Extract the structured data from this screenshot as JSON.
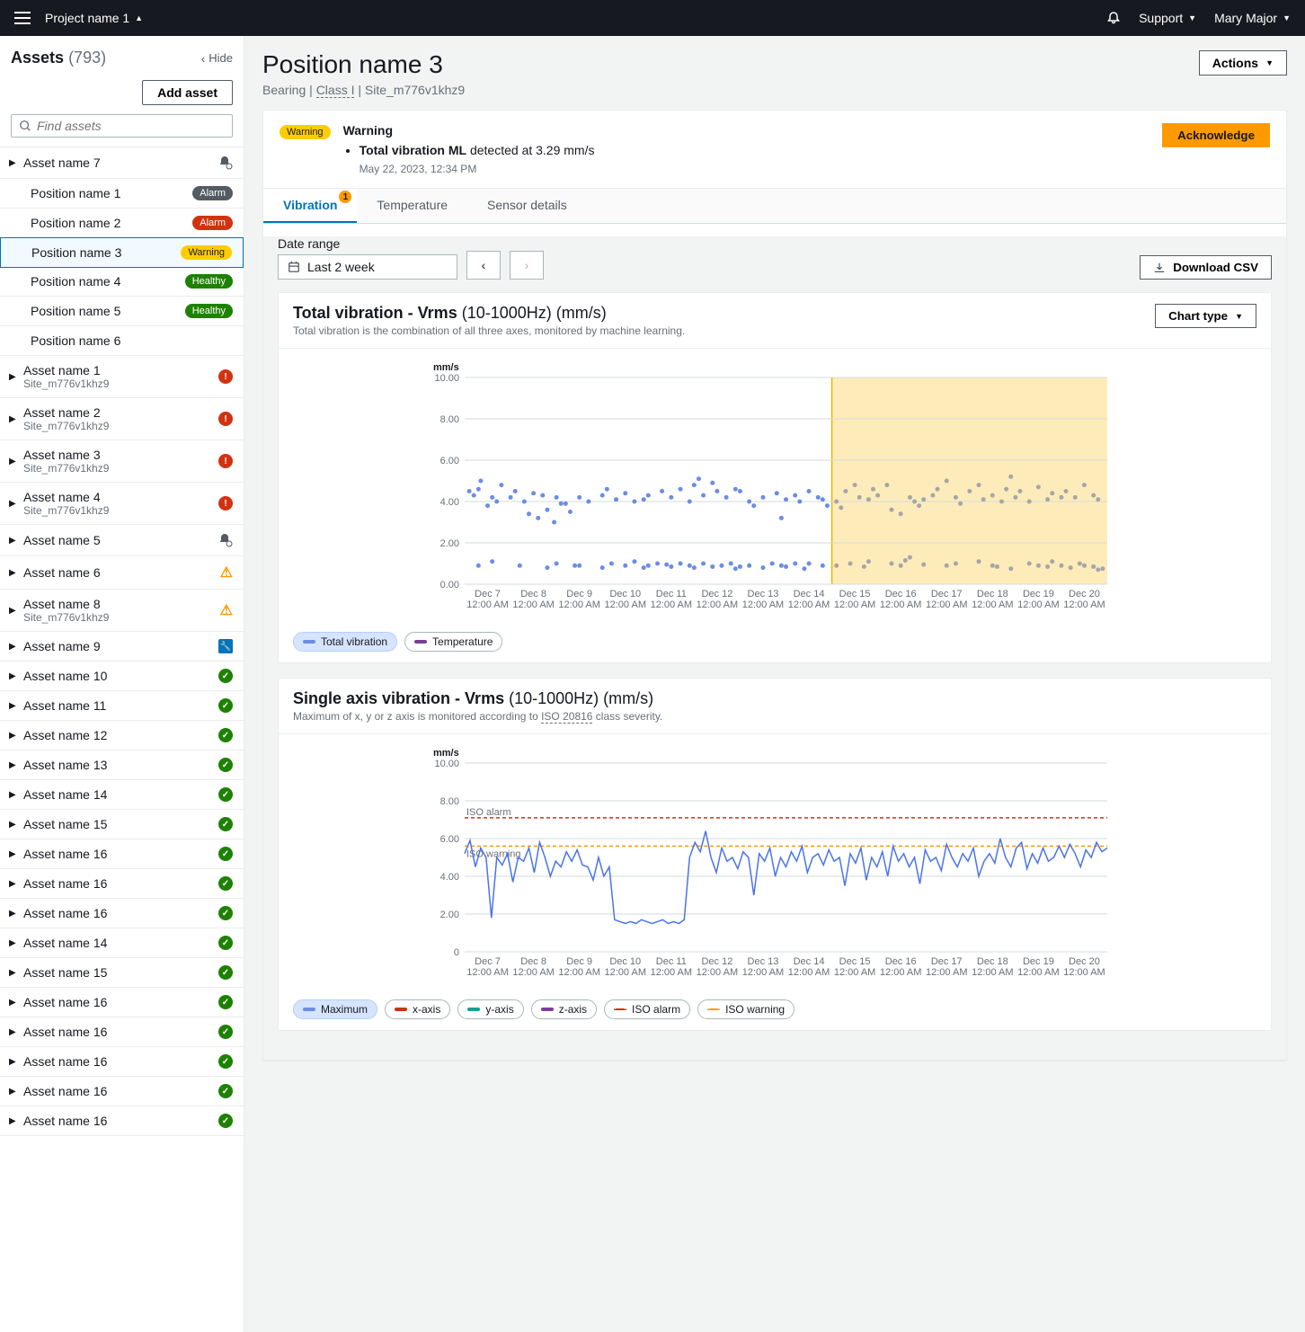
{
  "topnav": {
    "project": "Project name 1",
    "support": "Support",
    "user": "Mary Major"
  },
  "sidebar": {
    "title": "Assets",
    "count": "(793)",
    "hide": "Hide",
    "add_asset": "Add asset",
    "search_placeholder": "Find assets",
    "tree": [
      {
        "label": "Asset name 7",
        "status": "bell",
        "caret": true
      },
      {
        "label": "Position name 1",
        "badge": "alarm-g",
        "badge_text": "Alarm",
        "child": true
      },
      {
        "label": "Position name 2",
        "badge": "alarm",
        "badge_text": "Alarm",
        "child": true
      },
      {
        "label": "Position name 3",
        "badge": "warning",
        "badge_text": "Warning",
        "child": true,
        "selected": true
      },
      {
        "label": "Position name 4",
        "badge": "healthy",
        "badge_text": "Healthy",
        "child": true
      },
      {
        "label": "Position name 5",
        "badge": "healthy",
        "badge_text": "Healthy",
        "child": true
      },
      {
        "label": "Position name 6",
        "child": true
      },
      {
        "label": "Asset name 1",
        "sub": "Site_m776v1khz9",
        "status": "err",
        "caret": true
      },
      {
        "label": "Asset name 2",
        "sub": "Site_m776v1khz9",
        "status": "err",
        "caret": true
      },
      {
        "label": "Asset name 3",
        "sub": "Site_m776v1khz9",
        "status": "err",
        "caret": true
      },
      {
        "label": "Asset name 4",
        "sub": "Site_m776v1khz9",
        "status": "err",
        "caret": true
      },
      {
        "label": "Asset name 5",
        "status": "bell",
        "caret": true
      },
      {
        "label": "Asset name 6",
        "status": "warn",
        "caret": true
      },
      {
        "label": "Asset name 8",
        "sub": "Site_m776v1khz9",
        "status": "warn",
        "caret": true
      },
      {
        "label": "Asset name 9",
        "status": "wrench",
        "caret": true
      },
      {
        "label": "Asset name 10",
        "status": "ok",
        "caret": true
      },
      {
        "label": "Asset name 11",
        "status": "ok",
        "caret": true
      },
      {
        "label": "Asset name 12",
        "status": "ok",
        "caret": true
      },
      {
        "label": "Asset name 13",
        "status": "ok",
        "caret": true
      },
      {
        "label": "Asset name 14",
        "status": "ok",
        "caret": true
      },
      {
        "label": "Asset name 15",
        "status": "ok",
        "caret": true
      },
      {
        "label": "Asset name 16",
        "status": "ok",
        "caret": true
      },
      {
        "label": "Asset name 16",
        "status": "ok",
        "caret": true
      },
      {
        "label": "Asset name 16",
        "status": "ok",
        "caret": true
      },
      {
        "label": "Asset name 14",
        "status": "ok",
        "caret": true
      },
      {
        "label": "Asset name 15",
        "status": "ok",
        "caret": true
      },
      {
        "label": "Asset name 16",
        "status": "ok",
        "caret": true
      },
      {
        "label": "Asset name 16",
        "status": "ok",
        "caret": true
      },
      {
        "label": "Asset name 16",
        "status": "ok",
        "caret": true
      },
      {
        "label": "Asset name 16",
        "status": "ok",
        "caret": true
      },
      {
        "label": "Asset name 16",
        "status": "ok",
        "caret": true
      }
    ]
  },
  "main": {
    "title": "Position name 3",
    "crumb1": "Bearing",
    "crumb2": "Class I",
    "crumb3": "Site_m776v1khz9",
    "actions": "Actions",
    "alert": {
      "badge": "Warning",
      "title": "Warning",
      "bullet_b": "Total vibration ML",
      "bullet_rest": " detected at 3.29 mm/s",
      "ts": "May 22, 2023, 12:34 PM",
      "ack": "Acknowledge"
    },
    "tabs": [
      {
        "label": "Vibration",
        "active": true,
        "badge": "1"
      },
      {
        "label": "Temperature"
      },
      {
        "label": "Sensor details"
      }
    ],
    "date_label": "Date range",
    "date_value": "Last 2 week",
    "download": "Download CSV",
    "chart1": {
      "title_b": "Total vibration - Vrms",
      "title_l": " (10-1000Hz) (mm/s)",
      "sub": "Total vibration is the combination of all three axes, monitored by machine learning.",
      "chart_type": "Chart type",
      "ylabel": "mm/s",
      "ylim": [
        0,
        10
      ],
      "ytick_step": 2,
      "x_labels": [
        "Dec 7",
        "Dec 8",
        "Dec 9",
        "Dec 10",
        "Dec 11",
        "Dec 12",
        "Dec 13",
        "Dec 14",
        "Dec 15",
        "Dec 16",
        "Dec 17",
        "Dec 18",
        "Dec 19",
        "Dec 20"
      ],
      "x_sub": "12:00 AM",
      "highlight_start": 8,
      "highlight_color": "#fdecba",
      "colors": {
        "active": "#6b8de3",
        "inactive": "#a6a6a6"
      },
      "legends": [
        {
          "label": "Total vibration",
          "color": "#6b8de3",
          "active": true
        },
        {
          "label": "Temperature",
          "color": "#7d3c98"
        }
      ],
      "data": [
        [
          0.1,
          4.5
        ],
        [
          0.2,
          4.3
        ],
        [
          0.3,
          4.6
        ],
        [
          0.35,
          5.0
        ],
        [
          0.5,
          3.8
        ],
        [
          0.6,
          4.2
        ],
        [
          0.7,
          4.0
        ],
        [
          0.8,
          4.8
        ],
        [
          1.0,
          4.2
        ],
        [
          1.1,
          4.5
        ],
        [
          1.3,
          4.0
        ],
        [
          1.4,
          3.4
        ],
        [
          1.5,
          4.4
        ],
        [
          1.6,
          3.2
        ],
        [
          1.7,
          4.3
        ],
        [
          1.8,
          3.6
        ],
        [
          1.95,
          3.0
        ],
        [
          2.0,
          4.2
        ],
        [
          2.1,
          3.9
        ],
        [
          2.2,
          3.9
        ],
        [
          2.3,
          3.5
        ],
        [
          2.5,
          4.2
        ],
        [
          2.7,
          4.0
        ],
        [
          3.0,
          4.3
        ],
        [
          3.1,
          4.6
        ],
        [
          3.3,
          4.1
        ],
        [
          3.5,
          4.4
        ],
        [
          3.7,
          4.0
        ],
        [
          3.9,
          4.1
        ],
        [
          4.0,
          4.3
        ],
        [
          4.3,
          4.5
        ],
        [
          4.5,
          4.2
        ],
        [
          4.7,
          4.6
        ],
        [
          4.9,
          4.0
        ],
        [
          5.0,
          4.8
        ],
        [
          5.1,
          5.1
        ],
        [
          5.2,
          4.3
        ],
        [
          5.4,
          4.9
        ],
        [
          5.5,
          4.5
        ],
        [
          5.7,
          4.2
        ],
        [
          5.9,
          4.6
        ],
        [
          6.0,
          4.5
        ],
        [
          6.2,
          4.0
        ],
        [
          6.3,
          3.8
        ],
        [
          6.5,
          4.2
        ],
        [
          6.8,
          4.4
        ],
        [
          6.9,
          3.2
        ],
        [
          7.0,
          4.1
        ],
        [
          7.2,
          4.3
        ],
        [
          7.3,
          4.0
        ],
        [
          7.5,
          4.5
        ],
        [
          7.7,
          4.2
        ],
        [
          7.8,
          4.1
        ],
        [
          7.9,
          3.8
        ],
        [
          8.1,
          4.0
        ],
        [
          8.2,
          3.7
        ],
        [
          8.3,
          4.5
        ],
        [
          8.5,
          4.8
        ],
        [
          8.6,
          4.2
        ],
        [
          8.8,
          4.1
        ],
        [
          8.9,
          4.6
        ],
        [
          9.0,
          4.3
        ],
        [
          9.2,
          4.8
        ],
        [
          9.3,
          3.6
        ],
        [
          9.5,
          3.4
        ],
        [
          9.7,
          4.2
        ],
        [
          9.8,
          4.0
        ],
        [
          9.9,
          3.8
        ],
        [
          10.0,
          4.1
        ],
        [
          10.2,
          4.3
        ],
        [
          10.3,
          4.6
        ],
        [
          10.5,
          5.0
        ],
        [
          10.7,
          4.2
        ],
        [
          10.8,
          3.9
        ],
        [
          11.0,
          4.5
        ],
        [
          11.2,
          4.8
        ],
        [
          11.3,
          4.1
        ],
        [
          11.5,
          4.3
        ],
        [
          11.7,
          4.0
        ],
        [
          11.8,
          4.6
        ],
        [
          11.9,
          5.2
        ],
        [
          12.0,
          4.2
        ],
        [
          12.1,
          4.5
        ],
        [
          12.3,
          4.0
        ],
        [
          12.5,
          4.7
        ],
        [
          12.7,
          4.1
        ],
        [
          12.8,
          4.4
        ],
        [
          13.0,
          4.2
        ],
        [
          13.1,
          4.5
        ],
        [
          13.3,
          4.2
        ],
        [
          13.5,
          4.8
        ],
        [
          13.7,
          4.3
        ],
        [
          13.8,
          4.1
        ],
        [
          0.3,
          0.9
        ],
        [
          0.6,
          1.1
        ],
        [
          1.2,
          0.9
        ],
        [
          1.8,
          0.8
        ],
        [
          2.0,
          1.0
        ],
        [
          2.4,
          0.9
        ],
        [
          2.5,
          0.9
        ],
        [
          3.0,
          0.8
        ],
        [
          3.2,
          1.0
        ],
        [
          3.5,
          0.9
        ],
        [
          3.7,
          1.1
        ],
        [
          3.9,
          0.8
        ],
        [
          4.0,
          0.9
        ],
        [
          4.2,
          1.0
        ],
        [
          4.4,
          0.95
        ],
        [
          4.5,
          0.85
        ],
        [
          4.7,
          1.0
        ],
        [
          4.9,
          0.9
        ],
        [
          5.0,
          0.8
        ],
        [
          5.2,
          1.0
        ],
        [
          5.4,
          0.85
        ],
        [
          5.6,
          0.9
        ],
        [
          5.8,
          1.0
        ],
        [
          5.9,
          0.75
        ],
        [
          6.0,
          0.85
        ],
        [
          6.2,
          0.9
        ],
        [
          6.5,
          0.8
        ],
        [
          6.7,
          1.0
        ],
        [
          6.9,
          0.9
        ],
        [
          7.0,
          0.85
        ],
        [
          7.2,
          1.0
        ],
        [
          7.4,
          0.75
        ],
        [
          7.5,
          1.0
        ],
        [
          7.8,
          0.9
        ],
        [
          8.1,
          0.9
        ],
        [
          8.4,
          1.0
        ],
        [
          8.7,
          0.85
        ],
        [
          8.8,
          1.1
        ],
        [
          9.3,
          1.0
        ],
        [
          9.5,
          0.9
        ],
        [
          9.6,
          1.15
        ],
        [
          9.7,
          1.3
        ],
        [
          10.0,
          0.95
        ],
        [
          10.5,
          0.9
        ],
        [
          10.7,
          1.0
        ],
        [
          11.2,
          1.1
        ],
        [
          11.5,
          0.9
        ],
        [
          11.6,
          0.85
        ],
        [
          11.9,
          0.75
        ],
        [
          12.3,
          1.0
        ],
        [
          12.5,
          0.9
        ],
        [
          12.7,
          0.85
        ],
        [
          12.8,
          1.1
        ],
        [
          13.0,
          0.9
        ],
        [
          13.2,
          0.8
        ],
        [
          13.4,
          1.0
        ],
        [
          13.5,
          0.9
        ],
        [
          13.7,
          0.85
        ],
        [
          13.8,
          0.7
        ],
        [
          13.9,
          0.75
        ]
      ]
    },
    "chart2": {
      "title_b": "Single axis vibration - Vrms",
      "title_l": " (10-1000Hz) (mm/s)",
      "sub_pre": "Maximum of x, y or z axis is monitored according to ",
      "sub_link": "ISO 20816",
      "sub_post": " class severity.",
      "ylabel": "mm/s",
      "ylim": [
        0,
        10
      ],
      "ytick_step": 2,
      "x_labels": [
        "Dec 7",
        "Dec 8",
        "Dec 9",
        "Dec 10",
        "Dec 11",
        "Dec 12",
        "Dec 13",
        "Dec 14",
        "Dec 15",
        "Dec 16",
        "Dec 17",
        "Dec 18",
        "Dec 19",
        "Dec 20"
      ],
      "x_sub": "12:00 AM",
      "iso_alarm": 7.1,
      "iso_alarm_label": "ISO alarm",
      "iso_warning": 5.6,
      "iso_warning_label": "ISO warning",
      "line_color": "#4a74e8",
      "alarm_color": "#d13212",
      "warning_color": "#ff9900",
      "legends": [
        {
          "label": "Maximum",
          "color": "#6b8de3",
          "active": true
        },
        {
          "label": "x-axis",
          "color": "#d13212"
        },
        {
          "label": "y-axis",
          "color": "#1a9e8f"
        },
        {
          "label": "z-axis",
          "color": "#7d3c98"
        },
        {
          "label": "ISO alarm",
          "color": "#d13212",
          "dashed": true
        },
        {
          "label": "ISO warning",
          "color": "#ff9900",
          "dashed": true
        }
      ],
      "data": [
        5.2,
        5.9,
        4.5,
        5.5,
        5.0,
        1.8,
        5.0,
        4.6,
        5.2,
        3.7,
        5.0,
        4.8,
        5.5,
        4.2,
        5.8,
        5.0,
        4.0,
        4.8,
        4.5,
        5.3,
        4.8,
        5.4,
        4.6,
        4.5,
        3.8,
        5.0,
        4.0,
        4.5,
        1.7,
        1.6,
        1.5,
        1.6,
        1.5,
        1.7,
        1.6,
        1.5,
        1.6,
        1.7,
        1.5,
        1.6,
        1.5,
        1.7,
        5.0,
        5.8,
        5.3,
        6.4,
        5.0,
        4.2,
        5.5,
        4.8,
        5.0,
        4.4,
        5.3,
        5.0,
        3.0,
        5.2,
        4.8,
        5.5,
        4.0,
        5.0,
        4.5,
        5.3,
        4.8,
        5.6,
        4.2,
        5.0,
        5.2,
        4.6,
        5.4,
        4.8,
        5.0,
        3.5,
        5.2,
        4.7,
        5.5,
        3.8,
        5.0,
        4.5,
        5.3,
        4.0,
        5.6,
        4.8,
        5.2,
        4.5,
        5.0,
        3.6,
        5.4,
        4.8,
        5.0,
        4.3,
        5.7,
        5.0,
        4.5,
        5.2,
        4.8,
        5.5,
        4.0,
        4.8,
        5.2,
        4.7,
        6.0,
        5.0,
        4.5,
        5.5,
        5.8,
        4.4,
        5.2,
        4.7,
        5.5,
        4.8,
        5.0,
        5.6,
        5.0,
        5.7,
        5.2,
        4.5,
        5.4,
        5.0,
        5.8,
        5.3,
        5.5
      ]
    }
  }
}
